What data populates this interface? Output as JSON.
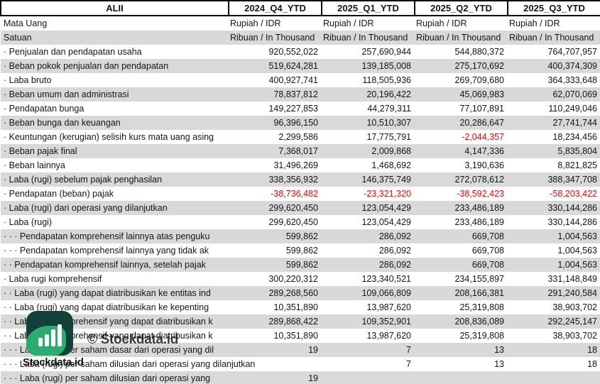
{
  "header": {
    "stock": "ALII",
    "periods": [
      "2024_Q4_YTD",
      "2025_Q1_YTD",
      "2025_Q2_YTD",
      "2025_Q3_YTD"
    ]
  },
  "meta_rows": [
    {
      "label": "Mata Uang",
      "values": [
        "Rupiah / IDR",
        "Rupiah / IDR",
        "Rupiah / IDR",
        "Rupiah / IDR"
      ]
    },
    {
      "label": "Satuan",
      "values": [
        "Ribuan / In Thousand",
        "Ribuan / In Thousand",
        "Ribuan / In Thousand",
        "Ribuan / In Thousand"
      ]
    }
  ],
  "rows": [
    {
      "label": "· Penjualan dan pendapatan usaha",
      "values": [
        "920,552,022",
        "257,690,944",
        "544,880,372",
        "764,707,957"
      ]
    },
    {
      "label": "· Beban pokok penjualan dan pendapatan",
      "values": [
        "519,624,281",
        "139,185,008",
        "275,170,692",
        "400,374,309"
      ]
    },
    {
      "label": "· Laba bruto",
      "values": [
        "400,927,741",
        "118,505,936",
        "269,709,680",
        "364,333,648"
      ]
    },
    {
      "label": "· Beban umum dan administrasi",
      "values": [
        "78,837,812",
        "20,196,422",
        "45,069,983",
        "62,070,069"
      ]
    },
    {
      "label": "· Pendapatan bunga",
      "values": [
        "149,227,853",
        "44,279,311",
        "77,107,891",
        "110,249,046"
      ]
    },
    {
      "label": "· Beban bunga dan keuangan",
      "values": [
        "96,396,150",
        "10,510,307",
        "20,286,647",
        "27,741,744"
      ]
    },
    {
      "label": "· Keuntungan (kerugian) selisih kurs mata uang asing",
      "values": [
        "2,299,586",
        "17,775,791",
        "-2,044,357",
        "18,234,456"
      ]
    },
    {
      "label": "· Beban pajak final",
      "values": [
        "7,368,017",
        "2,009,868",
        "4,147,336",
        "5,835,804"
      ]
    },
    {
      "label": "· Beban lainnya",
      "values": [
        "31,496,269",
        "1,468,692",
        "3,190,636",
        "8,821,825"
      ]
    },
    {
      "label": "· Laba (rugi) sebelum pajak penghasilan",
      "values": [
        "338,356,932",
        "146,375,749",
        "272,078,612",
        "388,347,708"
      ]
    },
    {
      "label": "· Pendapatan (beban) pajak",
      "values": [
        "-38,736,482",
        "-23,321,320",
        "-38,592,423",
        "-58,203,422"
      ]
    },
    {
      "label": "· Laba (rugi) dari operasi yang dilanjutkan",
      "values": [
        "299,620,450",
        "123,054,429",
        "233,486,189",
        "330,144,286"
      ]
    },
    {
      "label": "· Laba (rugi)",
      "values": [
        "299,620,450",
        "123,054,429",
        "233,486,189",
        "330,144,286"
      ]
    },
    {
      "label": "· · · Pendapatan komprehensif lainnya atas penguku",
      "values": [
        "599,862",
        "286,092",
        "669,708",
        "1,004,563"
      ]
    },
    {
      "label": "· · · Pendapatan komprehensif lainnya yang tidak ak",
      "values": [
        "599,862",
        "286,092",
        "669,708",
        "1,004,563"
      ]
    },
    {
      "label": "· · Pendapatan komprehensif lainnya, setelah pajak",
      "values": [
        "599,862",
        "286,092",
        "669,708",
        "1,004,563"
      ]
    },
    {
      "label": "· Laba rugi komprehensif",
      "values": [
        "300,220,312",
        "123,340,521",
        "234,155,897",
        "331,148,849"
      ]
    },
    {
      "label": "· · Laba (rugi) yang dapat diatribusikan ke entitas ind",
      "values": [
        "289,268,560",
        "109,066,809",
        "208,166,381",
        "291,240,584"
      ]
    },
    {
      "label": "· · Laba (rugi) yang dapat diatribusikan ke kepenting",
      "values": [
        "10,351,890",
        "13,987,620",
        "25,319,808",
        "38,903,702"
      ]
    },
    {
      "label": "· · Laba rugi komprehensif yang dapat diatribusikan k",
      "values": [
        "289,868,422",
        "109,352,901",
        "208,836,089",
        "292,245,147"
      ]
    },
    {
      "label": "· · Laba rugi komprehensif yang dapat diatribusikan k",
      "values": [
        "10,351,890",
        "13,987,620",
        "25,319,808",
        "38,903,702"
      ]
    },
    {
      "label": "· · · Laba (rugi) per saham dasar dari operasi yang dil",
      "values": [
        "19",
        "7",
        "13",
        "18"
      ]
    },
    {
      "label": "· · · Laba (rugi) per saham dilusian dari operasi yang dilanjutkan",
      "values": [
        "",
        "7",
        "13",
        "18"
      ]
    },
    {
      "label": "· · · Laba (rugi) per saham dilusian dari operasi yang",
      "values": [
        "19",
        "",
        "",
        ""
      ]
    }
  ],
  "watermark": {
    "logo_text": "Stockdata.id",
    "copyright_text": "© Stockdata.id"
  },
  "colors": {
    "stripe_gray": "#d9d9d9",
    "negative_red": "#ff0000",
    "logo_dark": "#12403b",
    "logo_green": "#2bac6e"
  }
}
